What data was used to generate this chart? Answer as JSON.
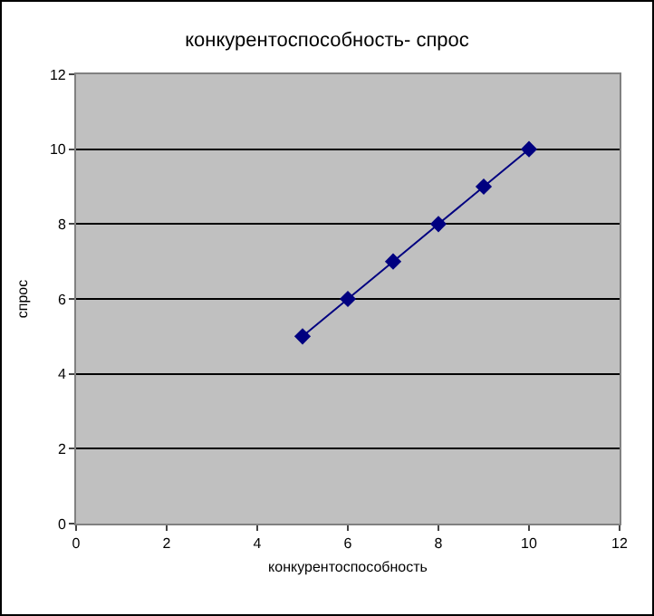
{
  "chart_data": {
    "type": "line",
    "title": "конкурентоспособность- спрос",
    "xlabel": "конкурентоспособность",
    "ylabel": "спрос",
    "x": [
      5,
      6,
      7,
      8,
      9,
      10
    ],
    "series": [
      {
        "color": "#000080",
        "values": [
          5,
          6,
          7,
          8,
          9,
          10
        ]
      }
    ],
    "xlim": [
      0,
      12
    ],
    "xticks": [
      0,
      2,
      4,
      6,
      8,
      10,
      12
    ],
    "ylim": [
      0,
      12
    ],
    "yticks": [
      0,
      2,
      4,
      6,
      8,
      10,
      12
    ],
    "grid": "y",
    "marker": "diamond",
    "line_style": "solid"
  }
}
